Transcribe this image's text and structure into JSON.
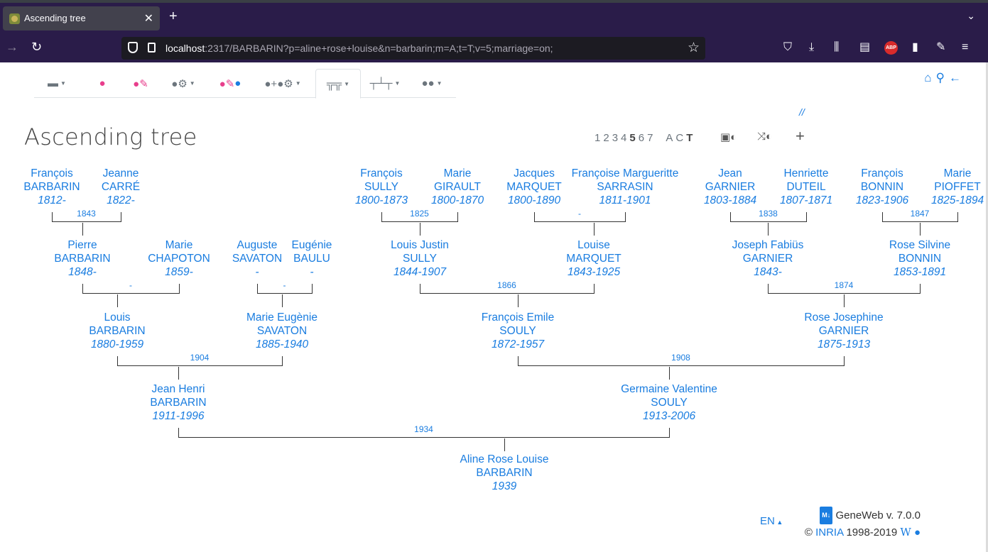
{
  "browser": {
    "tab_title": "Ascending tree",
    "url_host": "localhost",
    "url_rest": ":2317/BARBARIN?p=aline+rose+louise&n=barbarin;m=A;t=T;v=5;marriage=on;"
  },
  "page": {
    "title": "Ascending tree",
    "slashes": "//",
    "generations": [
      "1",
      "2",
      "3",
      "4",
      "5",
      "6",
      "7"
    ],
    "selected_generation": "5",
    "modes": [
      "A",
      "C",
      "T"
    ],
    "selected_mode": "T"
  },
  "tree": {
    "people": [
      {
        "first": "François",
        "last": "BARBARIN",
        "dates": "1812-"
      },
      {
        "first": "Jeanne",
        "last": "CARRÉ",
        "dates": "1822-"
      },
      {
        "first": "François",
        "last": "SULLY",
        "dates": "1800-1873"
      },
      {
        "first": "Marie",
        "last": "GIRAULT",
        "dates": "1800-1870"
      },
      {
        "first": "Jacques",
        "last": "MARQUET",
        "dates": "1800-1890"
      },
      {
        "first": "Françoise Margueritte",
        "last": "SARRASIN",
        "dates": "1811-1901"
      },
      {
        "first": "Jean",
        "last": "GARNIER",
        "dates": "1803-1884"
      },
      {
        "first": "Henriette",
        "last": "DUTEIL",
        "dates": "1807-1871"
      },
      {
        "first": "François",
        "last": "BONNIN",
        "dates": "1823-1906"
      },
      {
        "first": "Marie",
        "last": "PIOFFET",
        "dates": "1825-1894"
      },
      {
        "first": "Pierre",
        "last": "BARBARIN",
        "dates": "1848-"
      },
      {
        "first": "Marie",
        "last": "CHAPOTON",
        "dates": "1859-"
      },
      {
        "first": "Auguste",
        "last": "SAVATON",
        "dates": "-"
      },
      {
        "first": "Eugénie",
        "last": "BAULU",
        "dates": "-"
      },
      {
        "first": "Louis Justin",
        "last": "SULLY",
        "dates": "1844-1907"
      },
      {
        "first": "Louise",
        "last": "MARQUET",
        "dates": "1843-1925"
      },
      {
        "first": "Joseph Fabiüs",
        "last": "GARNIER",
        "dates": "1843-"
      },
      {
        "first": "Rose Silvine",
        "last": "BONNIN",
        "dates": "1853-1891"
      },
      {
        "first": "Louis",
        "last": "BARBARIN",
        "dates": "1880-1959"
      },
      {
        "first": "Marie Eugènie",
        "last": "SAVATON",
        "dates": "1885-1940"
      },
      {
        "first": "François Emile",
        "last": "SOULY",
        "dates": "1872-1957"
      },
      {
        "first": "Rose Josephine",
        "last": "GARNIER",
        "dates": "1875-1913"
      },
      {
        "first": "Jean Henri",
        "last": "BARBARIN",
        "dates": "1911-1996"
      },
      {
        "first": "Germaine Valentine",
        "last": "SOULY",
        "dates": "1913-2006"
      },
      {
        "first": "Aline Rose Louise",
        "last": "BARBARIN",
        "dates": "1939"
      }
    ],
    "marriages": [
      "1843",
      "1825",
      "-",
      "1838",
      "1847",
      "-",
      "-",
      "1866",
      "1874",
      "1904",
      "1908",
      "1934"
    ]
  },
  "footer": {
    "lang": "EN",
    "md_badge": "M↓",
    "version": "GeneWeb v. 7.0.0",
    "copyright_prefix": "©",
    "org": "INRIA",
    "years": "1998-2019",
    "wiki": "W"
  }
}
